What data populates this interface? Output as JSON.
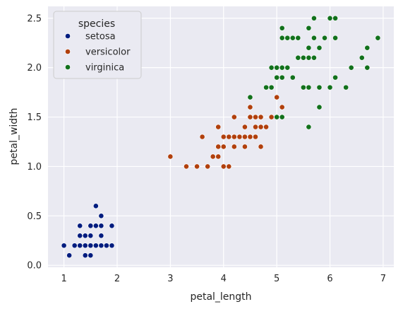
{
  "chart_data": {
    "type": "scatter",
    "xlabel": "petal_length",
    "ylabel": "petal_width",
    "xlim": [
      0.7,
      7.2
    ],
    "ylim": [
      -0.02,
      2.62
    ],
    "xticks": [
      1,
      2,
      3,
      4,
      5,
      6,
      7
    ],
    "yticks": [
      0.0,
      0.5,
      1.0,
      1.5,
      2.0,
      2.5
    ],
    "xtick_labels": [
      "1",
      "2",
      "3",
      "4",
      "5",
      "6",
      "7"
    ],
    "ytick_labels": [
      "0.0",
      "0.5",
      "1.0",
      "1.5",
      "2.0",
      "2.5"
    ],
    "grid": true,
    "legend": {
      "title": "species",
      "position": "top-left"
    },
    "series": [
      {
        "name": "setosa",
        "color": "#001c7f",
        "points": [
          [
            1.0,
            0.2
          ],
          [
            1.1,
            0.1
          ],
          [
            1.2,
            0.2
          ],
          [
            1.3,
            0.2
          ],
          [
            1.3,
            0.3
          ],
          [
            1.3,
            0.4
          ],
          [
            1.4,
            0.1
          ],
          [
            1.4,
            0.2
          ],
          [
            1.4,
            0.3
          ],
          [
            1.5,
            0.1
          ],
          [
            1.5,
            0.2
          ],
          [
            1.5,
            0.3
          ],
          [
            1.5,
            0.4
          ],
          [
            1.6,
            0.2
          ],
          [
            1.6,
            0.4
          ],
          [
            1.6,
            0.6
          ],
          [
            1.7,
            0.2
          ],
          [
            1.7,
            0.3
          ],
          [
            1.7,
            0.4
          ],
          [
            1.7,
            0.5
          ],
          [
            1.8,
            0.2
          ],
          [
            1.9,
            0.2
          ],
          [
            1.9,
            0.4
          ]
        ]
      },
      {
        "name": "versicolor",
        "color": "#b1400d",
        "points": [
          [
            3.0,
            1.1
          ],
          [
            3.3,
            1.0
          ],
          [
            3.5,
            1.0
          ],
          [
            3.6,
            1.3
          ],
          [
            3.7,
            1.0
          ],
          [
            3.8,
            1.1
          ],
          [
            3.9,
            1.1
          ],
          [
            3.9,
            1.2
          ],
          [
            3.9,
            1.4
          ],
          [
            4.0,
            1.0
          ],
          [
            4.0,
            1.2
          ],
          [
            4.0,
            1.3
          ],
          [
            4.1,
            1.0
          ],
          [
            4.1,
            1.3
          ],
          [
            4.2,
            1.2
          ],
          [
            4.2,
            1.3
          ],
          [
            4.2,
            1.5
          ],
          [
            4.3,
            1.3
          ],
          [
            4.4,
            1.2
          ],
          [
            4.4,
            1.3
          ],
          [
            4.4,
            1.4
          ],
          [
            4.5,
            1.3
          ],
          [
            4.5,
            1.5
          ],
          [
            4.5,
            1.6
          ],
          [
            4.6,
            1.3
          ],
          [
            4.6,
            1.4
          ],
          [
            4.6,
            1.5
          ],
          [
            4.7,
            1.2
          ],
          [
            4.7,
            1.4
          ],
          [
            4.7,
            1.5
          ],
          [
            4.8,
            1.4
          ],
          [
            4.8,
            1.8
          ],
          [
            4.9,
            1.5
          ],
          [
            5.0,
            1.7
          ],
          [
            5.1,
            1.6
          ]
        ]
      },
      {
        "name": "virginica",
        "color": "#12711c",
        "points": [
          [
            4.5,
            1.7
          ],
          [
            4.8,
            1.8
          ],
          [
            4.9,
            1.8
          ],
          [
            4.9,
            2.0
          ],
          [
            5.0,
            1.5
          ],
          [
            5.0,
            1.9
          ],
          [
            5.0,
            2.0
          ],
          [
            5.1,
            1.5
          ],
          [
            5.1,
            1.9
          ],
          [
            5.1,
            2.0
          ],
          [
            5.1,
            2.3
          ],
          [
            5.1,
            2.4
          ],
          [
            5.2,
            2.0
          ],
          [
            5.2,
            2.3
          ],
          [
            5.3,
            1.9
          ],
          [
            5.3,
            2.3
          ],
          [
            5.4,
            2.1
          ],
          [
            5.4,
            2.3
          ],
          [
            5.5,
            1.8
          ],
          [
            5.5,
            2.1
          ],
          [
            5.6,
            1.4
          ],
          [
            5.6,
            1.8
          ],
          [
            5.6,
            2.1
          ],
          [
            5.6,
            2.2
          ],
          [
            5.6,
            2.4
          ],
          [
            5.7,
            2.1
          ],
          [
            5.7,
            2.3
          ],
          [
            5.7,
            2.5
          ],
          [
            5.8,
            1.6
          ],
          [
            5.8,
            1.8
          ],
          [
            5.8,
            2.2
          ],
          [
            5.9,
            2.3
          ],
          [
            6.0,
            1.8
          ],
          [
            6.0,
            2.5
          ],
          [
            6.1,
            1.9
          ],
          [
            6.1,
            2.3
          ],
          [
            6.1,
            2.5
          ],
          [
            6.3,
            1.8
          ],
          [
            6.4,
            2.0
          ],
          [
            6.6,
            2.1
          ],
          [
            6.7,
            2.0
          ],
          [
            6.7,
            2.2
          ],
          [
            6.9,
            2.3
          ]
        ]
      }
    ]
  }
}
